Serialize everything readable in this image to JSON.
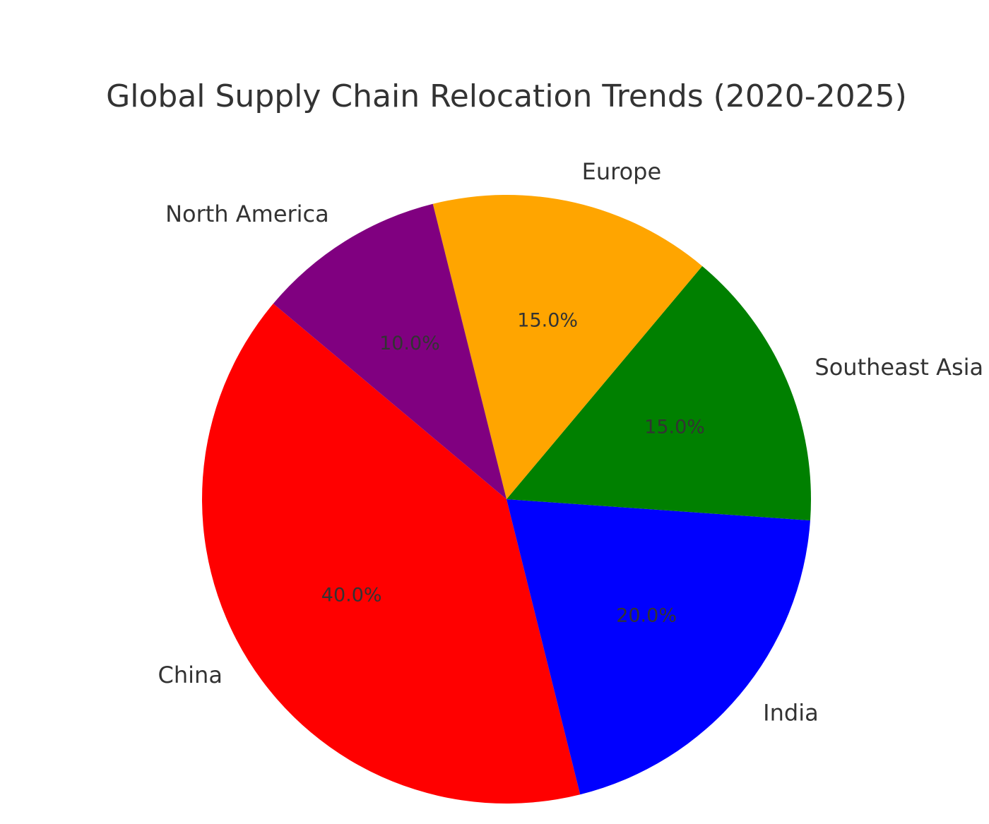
{
  "chart_data": {
    "type": "pie",
    "title": "Global Supply Chain Relocation Trends (2020-2025)",
    "categories": [
      "China",
      "India",
      "Southeast Asia",
      "Europe",
      "North America"
    ],
    "values": [
      40,
      20,
      15,
      15,
      10
    ],
    "value_labels": [
      "40.0%",
      "20.0%",
      "15.0%",
      "15.0%",
      "10.0%"
    ],
    "colors": [
      "#ff0000",
      "#0000ff",
      "#008000",
      "#ffa500",
      "#800080"
    ],
    "legend": "none",
    "label_color": "#333333"
  }
}
